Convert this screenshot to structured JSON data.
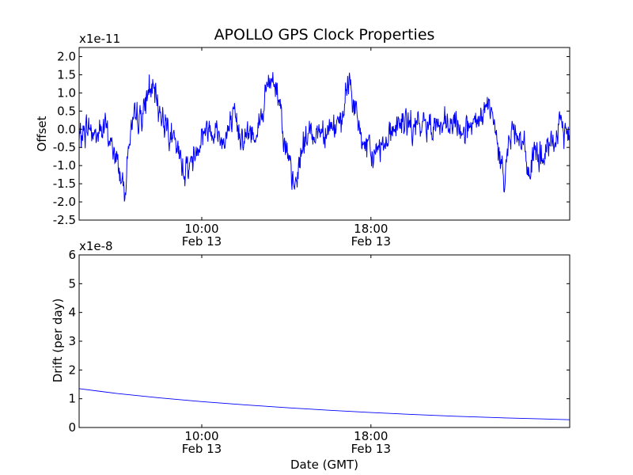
{
  "figure_title": "APOLLO GPS Clock Properties",
  "colors": {
    "line": "#0000ff",
    "axes": "#000000",
    "background": "#ffffff"
  },
  "chart_data": [
    {
      "type": "line",
      "title": "APOLLO GPS Clock Properties",
      "ylabel": "Offset",
      "xlabel": "",
      "scale_label": "x1e-11",
      "xlim_hours": [
        4.2,
        27.4
      ],
      "ylim": [
        -2.5,
        2.25
      ],
      "yticks": [
        -2.5,
        -2.0,
        -1.5,
        -1.0,
        -0.5,
        0.0,
        0.5,
        1.0,
        1.5,
        2.0
      ],
      "ytick_labels": [
        "-2.5",
        "-2.0",
        "-1.5",
        "-1.0",
        "-0.5",
        "0.0",
        "0.5",
        "1.0",
        "1.5",
        "2.0"
      ],
      "xticks": [
        {
          "hour": 10,
          "label1": "10:00",
          "label2": "Feb 13"
        },
        {
          "hour": 18,
          "label1": "18:00",
          "label2": "Feb 13"
        }
      ],
      "series": [
        {
          "name": "offset",
          "noise_amplitude": 0.28,
          "x": [
            4.2,
            4.6,
            5.0,
            5.4,
            5.7,
            6.0,
            6.2,
            6.35,
            6.6,
            7.0,
            7.3,
            7.5,
            7.7,
            8.1,
            8.4,
            8.8,
            9.2,
            9.6,
            10.0,
            10.5,
            11.0,
            11.5,
            12.0,
            12.5,
            12.9,
            13.1,
            13.4,
            13.7,
            13.9,
            14.1,
            14.4,
            14.8,
            15.2,
            15.7,
            16.2,
            16.6,
            16.8,
            17.0,
            17.3,
            17.6,
            18.0,
            18.5,
            19.0,
            19.5,
            20.0,
            20.5,
            21.0,
            21.5,
            22.0,
            22.5,
            23.0,
            23.3,
            23.6,
            23.8,
            24.0,
            24.3,
            24.6,
            24.9,
            25.2,
            25.5,
            25.8,
            26.2,
            26.6,
            27.0,
            27.4
          ],
          "y": [
            -0.3,
            0.1,
            -0.2,
            0.1,
            -0.4,
            -0.9,
            -1.3,
            -1.7,
            -0.1,
            0.3,
            0.5,
            1.2,
            1.0,
            0.4,
            0.1,
            -0.6,
            -1.1,
            -0.8,
            -0.1,
            0.1,
            -0.3,
            0.2,
            -0.2,
            -0.1,
            0.5,
            1.2,
            1.4,
            0.8,
            -0.2,
            -1.0,
            -1.7,
            -0.3,
            -0.1,
            0.0,
            0.1,
            0.0,
            0.9,
            1.4,
            0.3,
            -0.3,
            -0.8,
            -0.4,
            0.0,
            0.2,
            0.0,
            0.1,
            0.2,
            0.0,
            0.1,
            0.0,
            0.0,
            0.5,
            0.6,
            0.2,
            -0.6,
            -1.2,
            -0.2,
            0.1,
            -0.5,
            -1.2,
            -0.6,
            -0.8,
            -0.4,
            0.1,
            -0.2
          ]
        }
      ]
    },
    {
      "type": "line",
      "ylabel": "Drift (per day)",
      "xlabel": "Date (GMT)",
      "scale_label": "x1e-8",
      "xlim_hours": [
        4.2,
        27.4
      ],
      "ylim": [
        0,
        6
      ],
      "yticks": [
        0,
        1,
        2,
        3,
        4,
        5,
        6
      ],
      "ytick_labels": [
        "0",
        "1",
        "2",
        "3",
        "4",
        "5",
        "6"
      ],
      "xticks": [
        {
          "hour": 10,
          "label1": "10:00",
          "label2": "Feb 13"
        },
        {
          "hour": 18,
          "label1": "18:00",
          "label2": "Feb 13"
        }
      ],
      "series": [
        {
          "name": "drift",
          "x": [
            4.2,
            6.0,
            8.0,
            10.0,
            12.0,
            14.0,
            16.0,
            18.0,
            20.0,
            22.0,
            24.0,
            26.0,
            27.4
          ],
          "y": [
            1.35,
            1.18,
            1.03,
            0.9,
            0.79,
            0.69,
            0.6,
            0.52,
            0.45,
            0.39,
            0.34,
            0.3,
            0.27
          ]
        }
      ]
    }
  ]
}
